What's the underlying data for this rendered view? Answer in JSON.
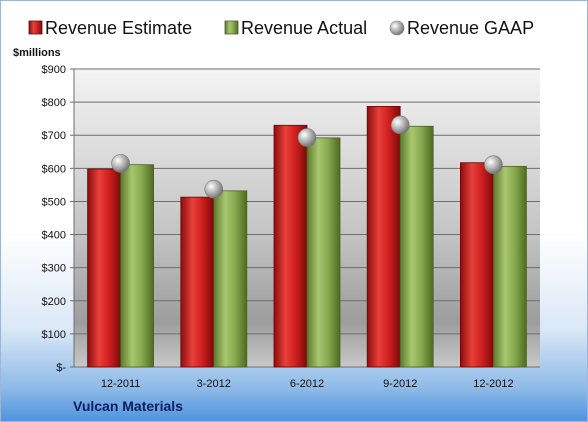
{
  "chart_data": {
    "type": "bar",
    "ylabel": "$millions",
    "categories": [
      "12-2011",
      "3-2012",
      "6-2012",
      "9-2012",
      "12-2012"
    ],
    "series": [
      {
        "name": "Revenue Estimate",
        "values": [
          598,
          513,
          730,
          787,
          617
        ],
        "color": "#cc1a1a"
      },
      {
        "name": "Revenue Actual",
        "values": [
          611,
          532,
          692,
          727,
          606
        ],
        "color": "#7fa146"
      }
    ],
    "markers": {
      "name": "Revenue GAAP",
      "values": [
        615,
        537,
        693,
        731,
        611
      ],
      "color": "#b0b0b0"
    },
    "ylim": [
      0,
      900
    ],
    "yticks": [
      "$-",
      "$100",
      "$200",
      "$300",
      "$400",
      "$500",
      "$600",
      "$700",
      "$800",
      "$900"
    ],
    "grid": true,
    "legend_position": "top"
  },
  "footer": {
    "company": "Vulcan Materials"
  }
}
